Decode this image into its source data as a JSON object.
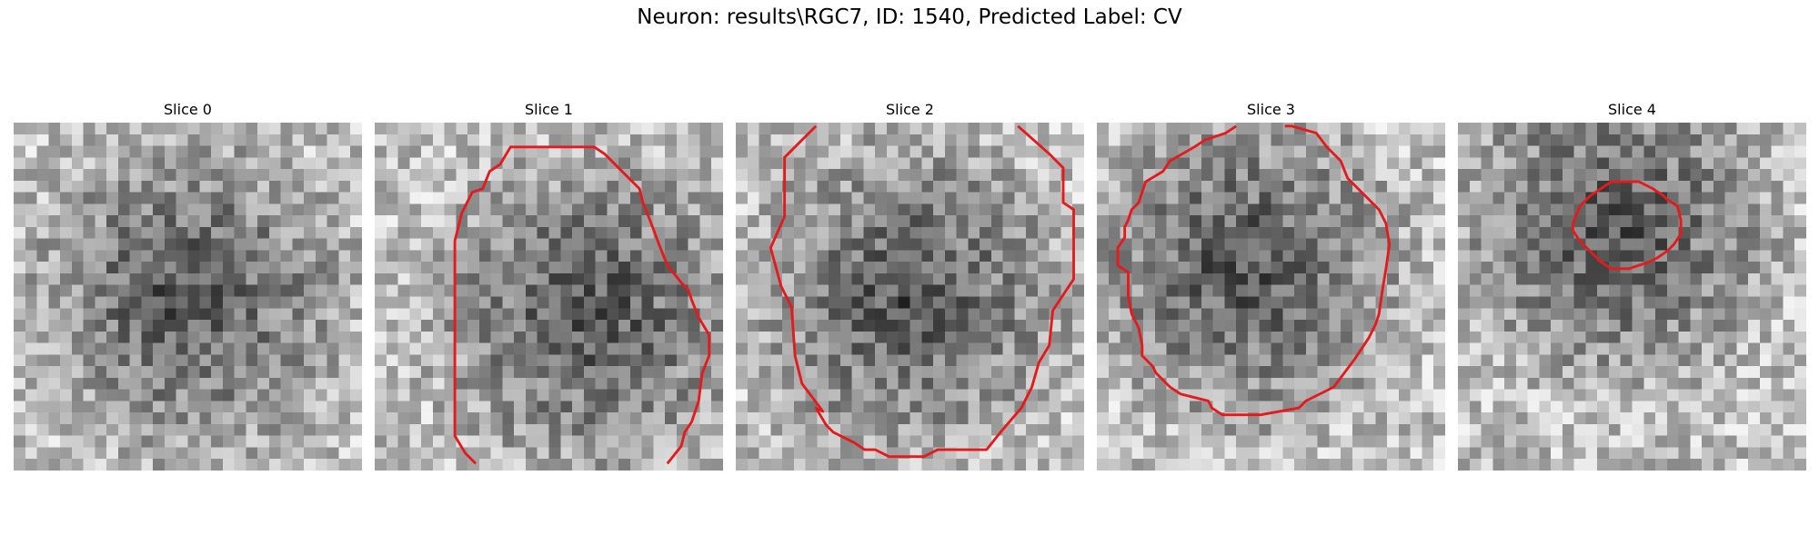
{
  "figure": {
    "title": "Neuron: results\\RGC7, ID: 1540, Predicted Label: CV"
  },
  "colors": {
    "contour": "#e41a1c",
    "background": "#ffffff",
    "colormap": "gray"
  },
  "panels": [
    {
      "title": "Slice 0",
      "seed": 11,
      "center": [
        0.5,
        0.5
      ],
      "contour": []
    },
    {
      "title": "Slice 1",
      "seed": 23,
      "center": [
        0.62,
        0.55
      ],
      "contour": [
        [
          0.29,
          0.98
        ],
        [
          0.26,
          0.95
        ],
        [
          0.23,
          0.9
        ],
        [
          0.23,
          0.83
        ],
        [
          0.23,
          0.34
        ],
        [
          0.25,
          0.26
        ],
        [
          0.27,
          0.22
        ],
        [
          0.28,
          0.2
        ],
        [
          0.31,
          0.19
        ],
        [
          0.33,
          0.14
        ],
        [
          0.36,
          0.12
        ],
        [
          0.39,
          0.07
        ],
        [
          0.46,
          0.07
        ],
        [
          0.63,
          0.07
        ],
        [
          0.66,
          0.09
        ],
        [
          0.67,
          0.1
        ],
        [
          0.72,
          0.15
        ],
        [
          0.76,
          0.19
        ],
        [
          0.77,
          0.23
        ],
        [
          0.79,
          0.28
        ],
        [
          0.82,
          0.36
        ],
        [
          0.84,
          0.41
        ],
        [
          0.88,
          0.46
        ],
        [
          0.9,
          0.48
        ],
        [
          0.91,
          0.51
        ],
        [
          0.93,
          0.56
        ],
        [
          0.96,
          0.61
        ],
        [
          0.96,
          0.67
        ],
        [
          0.94,
          0.72
        ],
        [
          0.93,
          0.8
        ],
        [
          0.91,
          0.86
        ],
        [
          0.89,
          0.89
        ],
        [
          0.88,
          0.93
        ],
        [
          0.84,
          0.98
        ]
      ]
    },
    {
      "title": "Slice 2",
      "seed": 37,
      "center": [
        0.5,
        0.5
      ],
      "contour": [
        [
          0.23,
          0.01
        ],
        [
          0.17,
          0.07
        ],
        [
          0.14,
          0.1
        ],
        [
          0.14,
          0.27
        ],
        [
          0.1,
          0.36
        ],
        [
          0.13,
          0.47
        ],
        [
          0.16,
          0.53
        ],
        [
          0.17,
          0.67
        ],
        [
          0.19,
          0.75
        ],
        [
          0.22,
          0.79
        ],
        [
          0.25,
          0.83
        ],
        [
          0.23,
          0.82
        ],
        [
          0.26,
          0.87
        ],
        [
          0.28,
          0.89
        ],
        [
          0.34,
          0.92
        ],
        [
          0.37,
          0.94
        ],
        [
          0.4,
          0.94
        ],
        [
          0.44,
          0.96
        ],
        [
          0.54,
          0.96
        ],
        [
          0.58,
          0.94
        ],
        [
          0.72,
          0.94
        ],
        [
          0.76,
          0.89
        ],
        [
          0.82,
          0.82
        ],
        [
          0.85,
          0.76
        ],
        [
          0.87,
          0.69
        ],
        [
          0.9,
          0.64
        ],
        [
          0.91,
          0.54
        ],
        [
          0.97,
          0.45
        ],
        [
          0.97,
          0.25
        ],
        [
          0.94,
          0.23
        ],
        [
          0.94,
          0.13
        ],
        [
          0.9,
          0.09
        ],
        [
          0.81,
          0.01
        ]
      ]
    },
    {
      "title": "Slice 3",
      "seed": 51,
      "center": [
        0.43,
        0.42
      ],
      "contour": [
        [
          0.4,
          0.01
        ],
        [
          0.37,
          0.03
        ],
        [
          0.31,
          0.05
        ],
        [
          0.28,
          0.07
        ],
        [
          0.21,
          0.11
        ],
        [
          0.19,
          0.14
        ],
        [
          0.14,
          0.17
        ],
        [
          0.13,
          0.2
        ],
        [
          0.12,
          0.23
        ],
        [
          0.1,
          0.25
        ],
        [
          0.09,
          0.28
        ],
        [
          0.08,
          0.3
        ],
        [
          0.08,
          0.33
        ],
        [
          0.06,
          0.36
        ],
        [
          0.06,
          0.41
        ],
        [
          0.09,
          0.43
        ],
        [
          0.09,
          0.5
        ],
        [
          0.1,
          0.55
        ],
        [
          0.12,
          0.59
        ],
        [
          0.13,
          0.64
        ],
        [
          0.13,
          0.67
        ],
        [
          0.16,
          0.7
        ],
        [
          0.17,
          0.72
        ],
        [
          0.19,
          0.74
        ],
        [
          0.21,
          0.76
        ],
        [
          0.24,
          0.78
        ],
        [
          0.28,
          0.79
        ],
        [
          0.32,
          0.8
        ],
        [
          0.33,
          0.82
        ],
        [
          0.36,
          0.84
        ],
        [
          0.47,
          0.84
        ],
        [
          0.58,
          0.82
        ],
        [
          0.6,
          0.8
        ],
        [
          0.64,
          0.78
        ],
        [
          0.68,
          0.76
        ],
        [
          0.71,
          0.72
        ],
        [
          0.74,
          0.68
        ],
        [
          0.76,
          0.65
        ],
        [
          0.78,
          0.62
        ],
        [
          0.8,
          0.58
        ],
        [
          0.81,
          0.55
        ],
        [
          0.82,
          0.48
        ],
        [
          0.83,
          0.42
        ],
        [
          0.84,
          0.35
        ],
        [
          0.83,
          0.29
        ],
        [
          0.81,
          0.25
        ],
        [
          0.78,
          0.22
        ],
        [
          0.72,
          0.16
        ],
        [
          0.7,
          0.11
        ],
        [
          0.66,
          0.07
        ],
        [
          0.63,
          0.03
        ],
        [
          0.56,
          0.01
        ],
        [
          0.54,
          0.01
        ]
      ]
    },
    {
      "title": "Slice 4",
      "seed": 67,
      "center": [
        0.45,
        0.3
      ],
      "contour": [
        [
          0.33,
          0.29
        ],
        [
          0.35,
          0.24
        ],
        [
          0.38,
          0.21
        ],
        [
          0.41,
          0.19
        ],
        [
          0.44,
          0.17
        ],
        [
          0.52,
          0.17
        ],
        [
          0.56,
          0.19
        ],
        [
          0.59,
          0.21
        ],
        [
          0.6,
          0.22
        ],
        [
          0.63,
          0.24
        ],
        [
          0.64,
          0.28
        ],
        [
          0.64,
          0.32
        ],
        [
          0.62,
          0.35
        ],
        [
          0.6,
          0.37
        ],
        [
          0.57,
          0.39
        ],
        [
          0.55,
          0.4
        ],
        [
          0.49,
          0.42
        ],
        [
          0.44,
          0.42
        ],
        [
          0.41,
          0.4
        ],
        [
          0.38,
          0.37
        ],
        [
          0.35,
          0.34
        ],
        [
          0.33,
          0.31
        ],
        [
          0.33,
          0.29
        ]
      ]
    }
  ]
}
